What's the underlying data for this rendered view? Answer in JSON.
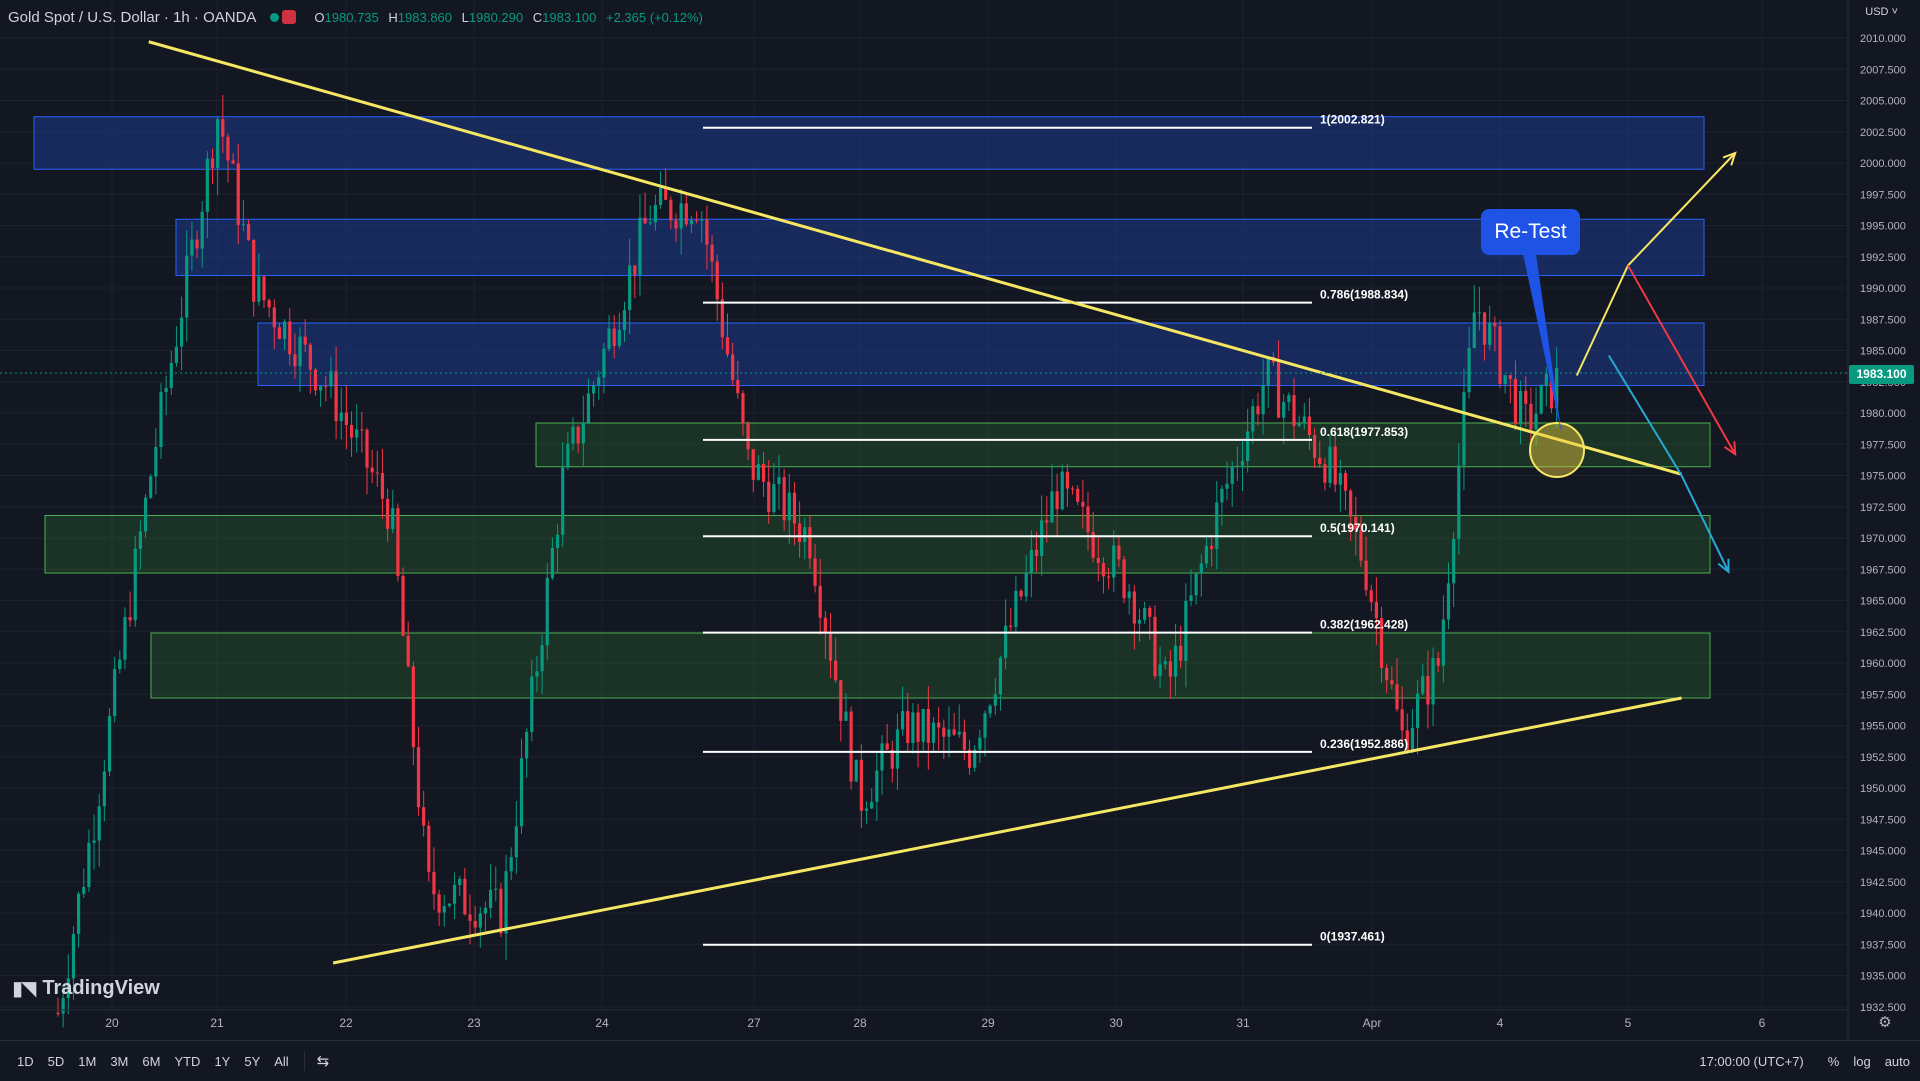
{
  "header": {
    "symbol": "Gold Spot / U.S. Dollar · 1h · OANDA",
    "ohlc": {
      "o": "1980.735",
      "h": "1983.860",
      "l": "1980.290",
      "c": "1983.100",
      "change": "+2.365 (+0.12%)"
    },
    "currency": "USD"
  },
  "price_tag": "1983.100",
  "brand": "TradingView",
  "annotation": "Re-Test",
  "toolbar": {
    "ranges": [
      "1D",
      "5D",
      "1M",
      "3M",
      "6M",
      "YTD",
      "1Y",
      "5Y",
      "All"
    ],
    "timezone": "17:00:00 (UTC+7)",
    "percent": "%",
    "log": "log",
    "auto": "auto"
  },
  "chart_data": {
    "type": "candlestick",
    "title": "Gold Spot / U.S. Dollar · 1h · OANDA",
    "ylim": [
      1932.5,
      2010.0
    ],
    "y_ticks": [
      "2010.000",
      "2007.500",
      "2005.000",
      "2002.500",
      "2000.000",
      "1997.500",
      "1995.000",
      "1992.500",
      "1990.000",
      "1987.500",
      "1985.000",
      "1982.500",
      "1980.000",
      "1977.500",
      "1975.000",
      "1972.500",
      "1970.000",
      "1967.500",
      "1965.000",
      "1962.500",
      "1960.000",
      "1957.500",
      "1955.000",
      "1952.500",
      "1950.000",
      "1947.500",
      "1945.000",
      "1942.500",
      "1940.000",
      "1937.500",
      "1935.000",
      "1932.500"
    ],
    "x_ticks": [
      "20",
      "21",
      "22",
      "23",
      "24",
      "27",
      "28",
      "29",
      "30",
      "31",
      "Apr",
      "4",
      "5",
      "6"
    ],
    "current_price": 1983.1,
    "close_path": [
      {
        "t": 0,
        "p": 1932
      },
      {
        "t": 0.3,
        "p": 1948
      },
      {
        "t": 0.8,
        "p": 1978
      },
      {
        "t": 1.3,
        "p": 2004
      },
      {
        "t": 1.6,
        "p": 1990
      },
      {
        "t": 2.2,
        "p": 1982
      },
      {
        "t": 2.7,
        "p": 1972
      },
      {
        "t": 3.0,
        "p": 1942
      },
      {
        "t": 3.6,
        "p": 1940
      },
      {
        "t": 4.1,
        "p": 1975
      },
      {
        "t": 4.8,
        "p": 1996
      },
      {
        "t": 5.2,
        "p": 1997
      },
      {
        "t": 5.6,
        "p": 1976
      },
      {
        "t": 6.1,
        "p": 1970
      },
      {
        "t": 6.5,
        "p": 1949
      },
      {
        "t": 6.9,
        "p": 1955
      },
      {
        "t": 7.4,
        "p": 1953
      },
      {
        "t": 8.1,
        "p": 1974
      },
      {
        "t": 8.7,
        "p": 1966
      },
      {
        "t": 9.0,
        "p": 1958
      },
      {
        "t": 9.4,
        "p": 1972
      },
      {
        "t": 9.8,
        "p": 1983
      },
      {
        "t": 10.3,
        "p": 1976
      },
      {
        "t": 10.6,
        "p": 1968
      },
      {
        "t": 10.9,
        "p": 1954
      },
      {
        "t": 11.2,
        "p": 1960
      },
      {
        "t": 11.5,
        "p": 1989
      },
      {
        "t": 11.9,
        "p": 1979
      },
      {
        "t": 12.2,
        "p": 1983.1
      }
    ],
    "fibonacci": [
      {
        "label": "1(2002.821)",
        "price": 2002.821
      },
      {
        "label": "0.786(1988.834)",
        "price": 1988.834
      },
      {
        "label": "0.618(1977.853)",
        "price": 1977.853
      },
      {
        "label": "0.5(1970.141)",
        "price": 1970.141
      },
      {
        "label": "0.382(1962.428)",
        "price": 1962.428
      },
      {
        "label": "0.236(1952.886)",
        "price": 1952.886
      },
      {
        "label": "0(1937.461)",
        "price": 1937.461
      }
    ],
    "zones": [
      {
        "kind": "resistance",
        "from": 1999.5,
        "to": 2003.7,
        "color": "#1e3a8a"
      },
      {
        "kind": "resistance",
        "from": 1991.0,
        "to": 1995.5,
        "color": "#1e3a8a"
      },
      {
        "kind": "resistance",
        "from": 1982.2,
        "to": 1987.2,
        "color": "#1e3a8a"
      },
      {
        "kind": "support",
        "from": 1975.7,
        "to": 1979.2,
        "color": "#2e7d32"
      },
      {
        "kind": "support",
        "from": 1967.2,
        "to": 1971.8,
        "color": "#2e7d32"
      },
      {
        "kind": "support",
        "from": 1957.2,
        "to": 1962.4,
        "color": "#2e7d32"
      }
    ],
    "trendlines": [
      {
        "name": "descending",
        "from": {
          "t": 0.35,
          "p": 2009.7
        },
        "to": {
          "t": 12.4,
          "p": 1975.1
        },
        "color": "#f5e663"
      },
      {
        "name": "ascending",
        "from": {
          "t": 1.9,
          "p": 1936.0
        },
        "to": {
          "t": 12.4,
          "p": 1957.2
        },
        "color": "#f5e663"
      }
    ],
    "scenario_arrows": [
      {
        "color": "#f5e663",
        "points": [
          {
            "t": 11.6,
            "p": 1983.0
          },
          {
            "t": 12.0,
            "p": 1991.8
          },
          {
            "t": 12.8,
            "p": 2000.8
          }
        ]
      },
      {
        "color": "#f23645",
        "points": [
          {
            "t": 12.0,
            "p": 1991.8
          },
          {
            "t": 12.8,
            "p": 1976.7
          }
        ]
      },
      {
        "color": "#26a8d4",
        "points": [
          {
            "t": 11.85,
            "p": 1984.6
          },
          {
            "t": 12.4,
            "p": 1975.0
          },
          {
            "t": 12.75,
            "p": 1967.3
          }
        ]
      }
    ],
    "colors": {
      "up": "#089981",
      "down": "#f23645",
      "background": "#131722",
      "grid": "#1e222d"
    }
  }
}
